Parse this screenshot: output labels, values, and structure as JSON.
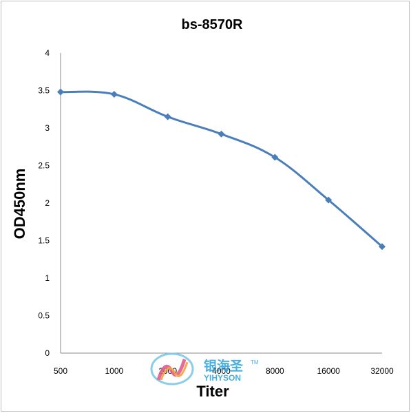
{
  "chart_data": {
    "type": "line",
    "title": "bs-8570R",
    "xlabel": "Titer",
    "ylabel": "OD450nm",
    "categories": [
      "500",
      "1000",
      "2000",
      "4000",
      "8000",
      "16000",
      "32000"
    ],
    "series": [
      {
        "values": [
          3.48,
          3.45,
          3.15,
          2.92,
          2.61,
          2.04,
          1.42
        ]
      }
    ],
    "ylim": [
      0,
      4
    ],
    "yticks": [
      "0",
      "0.5",
      "1",
      "1.5",
      "2",
      "2.5",
      "3",
      "3.5",
      "4"
    ],
    "grid": false,
    "legend": "none",
    "colors": {
      "line": "#4a7ebb",
      "marker": "#4a7ebb"
    }
  },
  "watermark": {
    "chinese": "银海圣",
    "english": "YIHYSON",
    "tm": "TM"
  }
}
